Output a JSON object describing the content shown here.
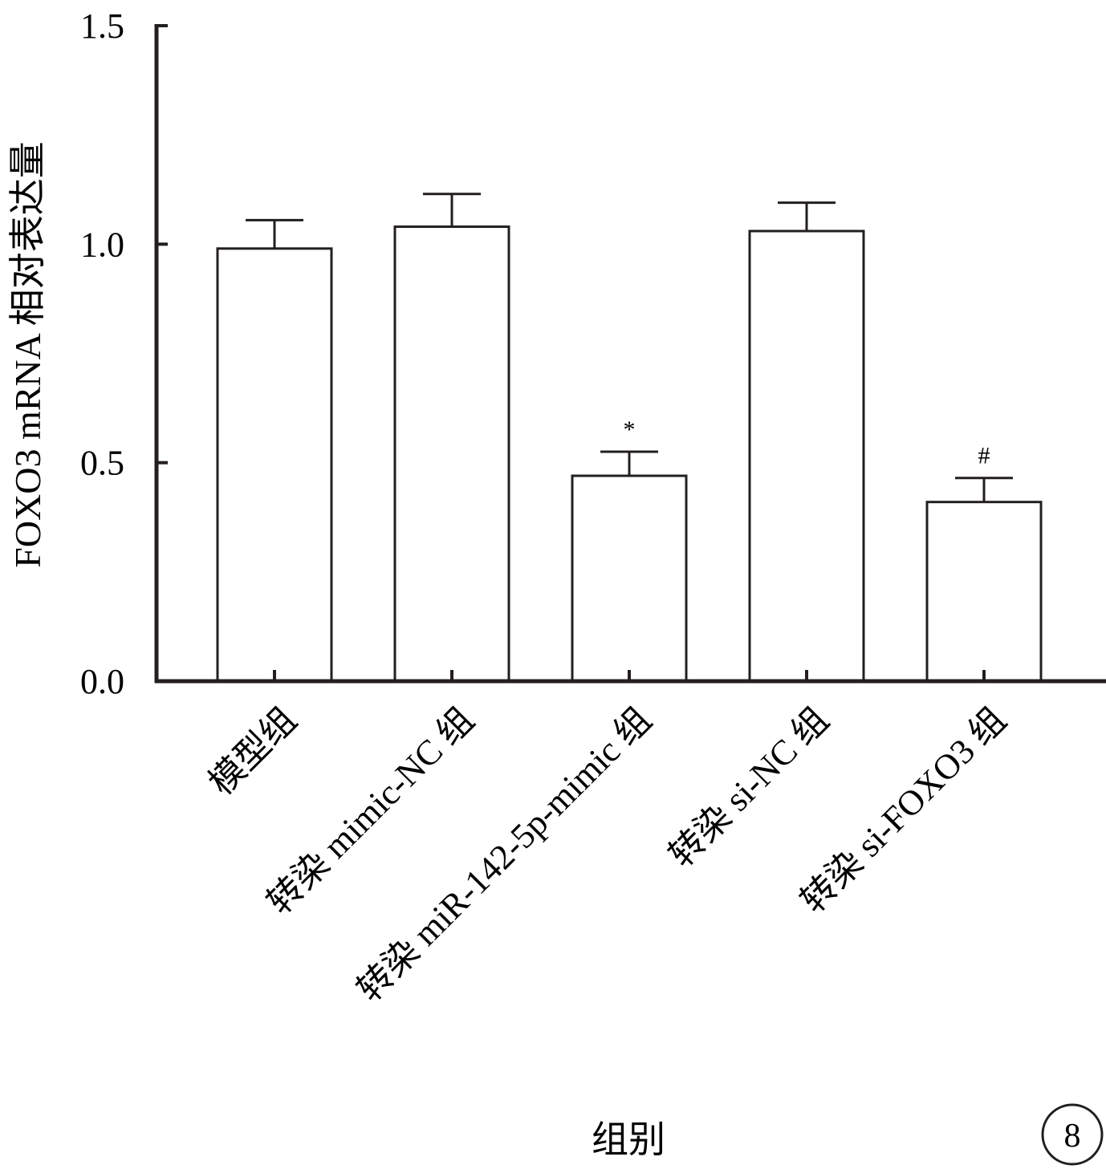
{
  "chart_data": {
    "type": "bar",
    "title": "",
    "xlabel": "组别",
    "ylabel": "FOXO3 mRNA 相对表达量",
    "ylim": [
      0,
      1.5
    ],
    "yticks": [
      0.0,
      0.5,
      1.0,
      1.5
    ],
    "ytick_labels": [
      "0.0",
      "0.5",
      "1.0",
      "1.5"
    ],
    "grid": false,
    "legend": "none",
    "categories": [
      "模型组",
      "转染 mimic-NC 组",
      "转染 miR-142-5p-mimic 组",
      "转染 si-NC 组",
      "转染 si-FOXO3 组"
    ],
    "values": [
      0.99,
      1.04,
      0.47,
      1.03,
      0.41
    ],
    "errors": [
      0.065,
      0.075,
      0.055,
      0.065,
      0.055
    ],
    "annotations": [
      "",
      "",
      "*",
      "",
      "#"
    ],
    "bar_fill": "#ffffff",
    "stroke": "#231f20"
  },
  "panel_label": "8"
}
